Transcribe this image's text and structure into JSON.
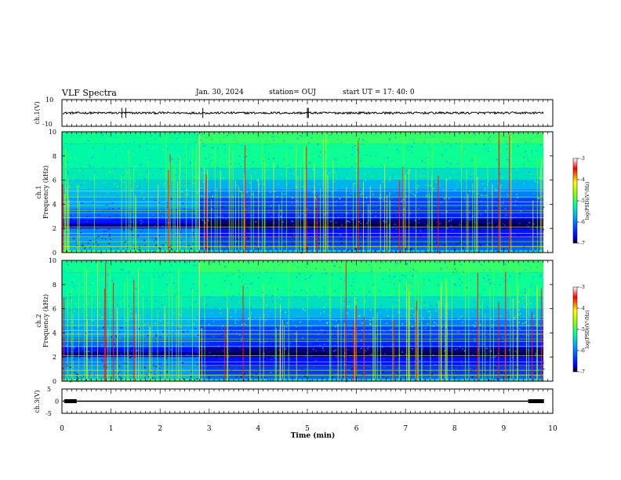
{
  "header": {
    "title": "VLF Spectra",
    "date": "Jan. 30, 2024",
    "station": "station= OUJ",
    "start": "start  UT  =   17: 40: 0"
  },
  "chart_data": [
    {
      "type": "line",
      "panel": "ch1-waveform",
      "ylabel": "ch.1(V)",
      "ylim": [
        -10,
        10
      ],
      "yticks": [
        "10",
        "-10"
      ],
      "xlim": [
        0,
        10
      ],
      "baseline": 0,
      "spikes_at_min": [
        1.22,
        1.3,
        2.87,
        5.0,
        5.02
      ]
    },
    {
      "type": "heatmap",
      "panel": "ch1-spectrogram",
      "ylabel": "ch.1\nFrequency (kHz)",
      "ylabel_line1": "ch.1",
      "ylabel_line2": "Frequency (kHz)",
      "ylim": [
        0,
        10
      ],
      "yticks": [
        "0",
        "2",
        "4",
        "6",
        "8",
        "10"
      ],
      "xlim": [
        0,
        10
      ],
      "colorbar": {
        "label": "log(PSD)(V²/Hz)",
        "range": [
          -7,
          -3
        ],
        "ticks": [
          "-3",
          "-4",
          "-5",
          "-6",
          "-7"
        ],
        "colors": [
          "#000000",
          "#0000ff",
          "#00a0ff",
          "#00ffa0",
          "#a0ff00",
          "#ffff00",
          "#ff0000",
          "#ffffff"
        ]
      },
      "transition_min": 2.8,
      "description_bands_khz": [
        [
          0,
          2.5,
          -6.4
        ],
        [
          2.5,
          4.5,
          -5.8
        ],
        [
          4.5,
          10,
          -5.1
        ]
      ]
    },
    {
      "type": "heatmap",
      "panel": "ch2-spectrogram",
      "ylabel_line1": "ch.2",
      "ylabel_line2": "Frequency (kHz)",
      "ylim": [
        0,
        10
      ],
      "yticks": [
        "0",
        "2",
        "4",
        "6",
        "8",
        "10"
      ],
      "xlim": [
        0,
        10
      ],
      "colorbar": {
        "label": "log(PSD)(V²/Hz)",
        "range": [
          -7,
          -3
        ],
        "ticks": [
          "-3",
          "-4",
          "-5",
          "-6",
          "-7"
        ]
      },
      "transition_min": 2.8
    },
    {
      "type": "line",
      "panel": "ch3-waveform",
      "ylabel": "ch.3(V)",
      "ylim": [
        -5,
        5
      ],
      "yticks": [
        "5",
        "0",
        "-5"
      ],
      "xlim": [
        0,
        10
      ],
      "value": 0,
      "thick_segments_min": [
        [
          0.05,
          0.3
        ],
        [
          9.5,
          9.82
        ]
      ]
    }
  ],
  "xaxis": {
    "label": "Time (min)",
    "ticks": [
      "0",
      "1",
      "2",
      "3",
      "4",
      "5",
      "6",
      "7",
      "8",
      "9",
      "10"
    ]
  }
}
